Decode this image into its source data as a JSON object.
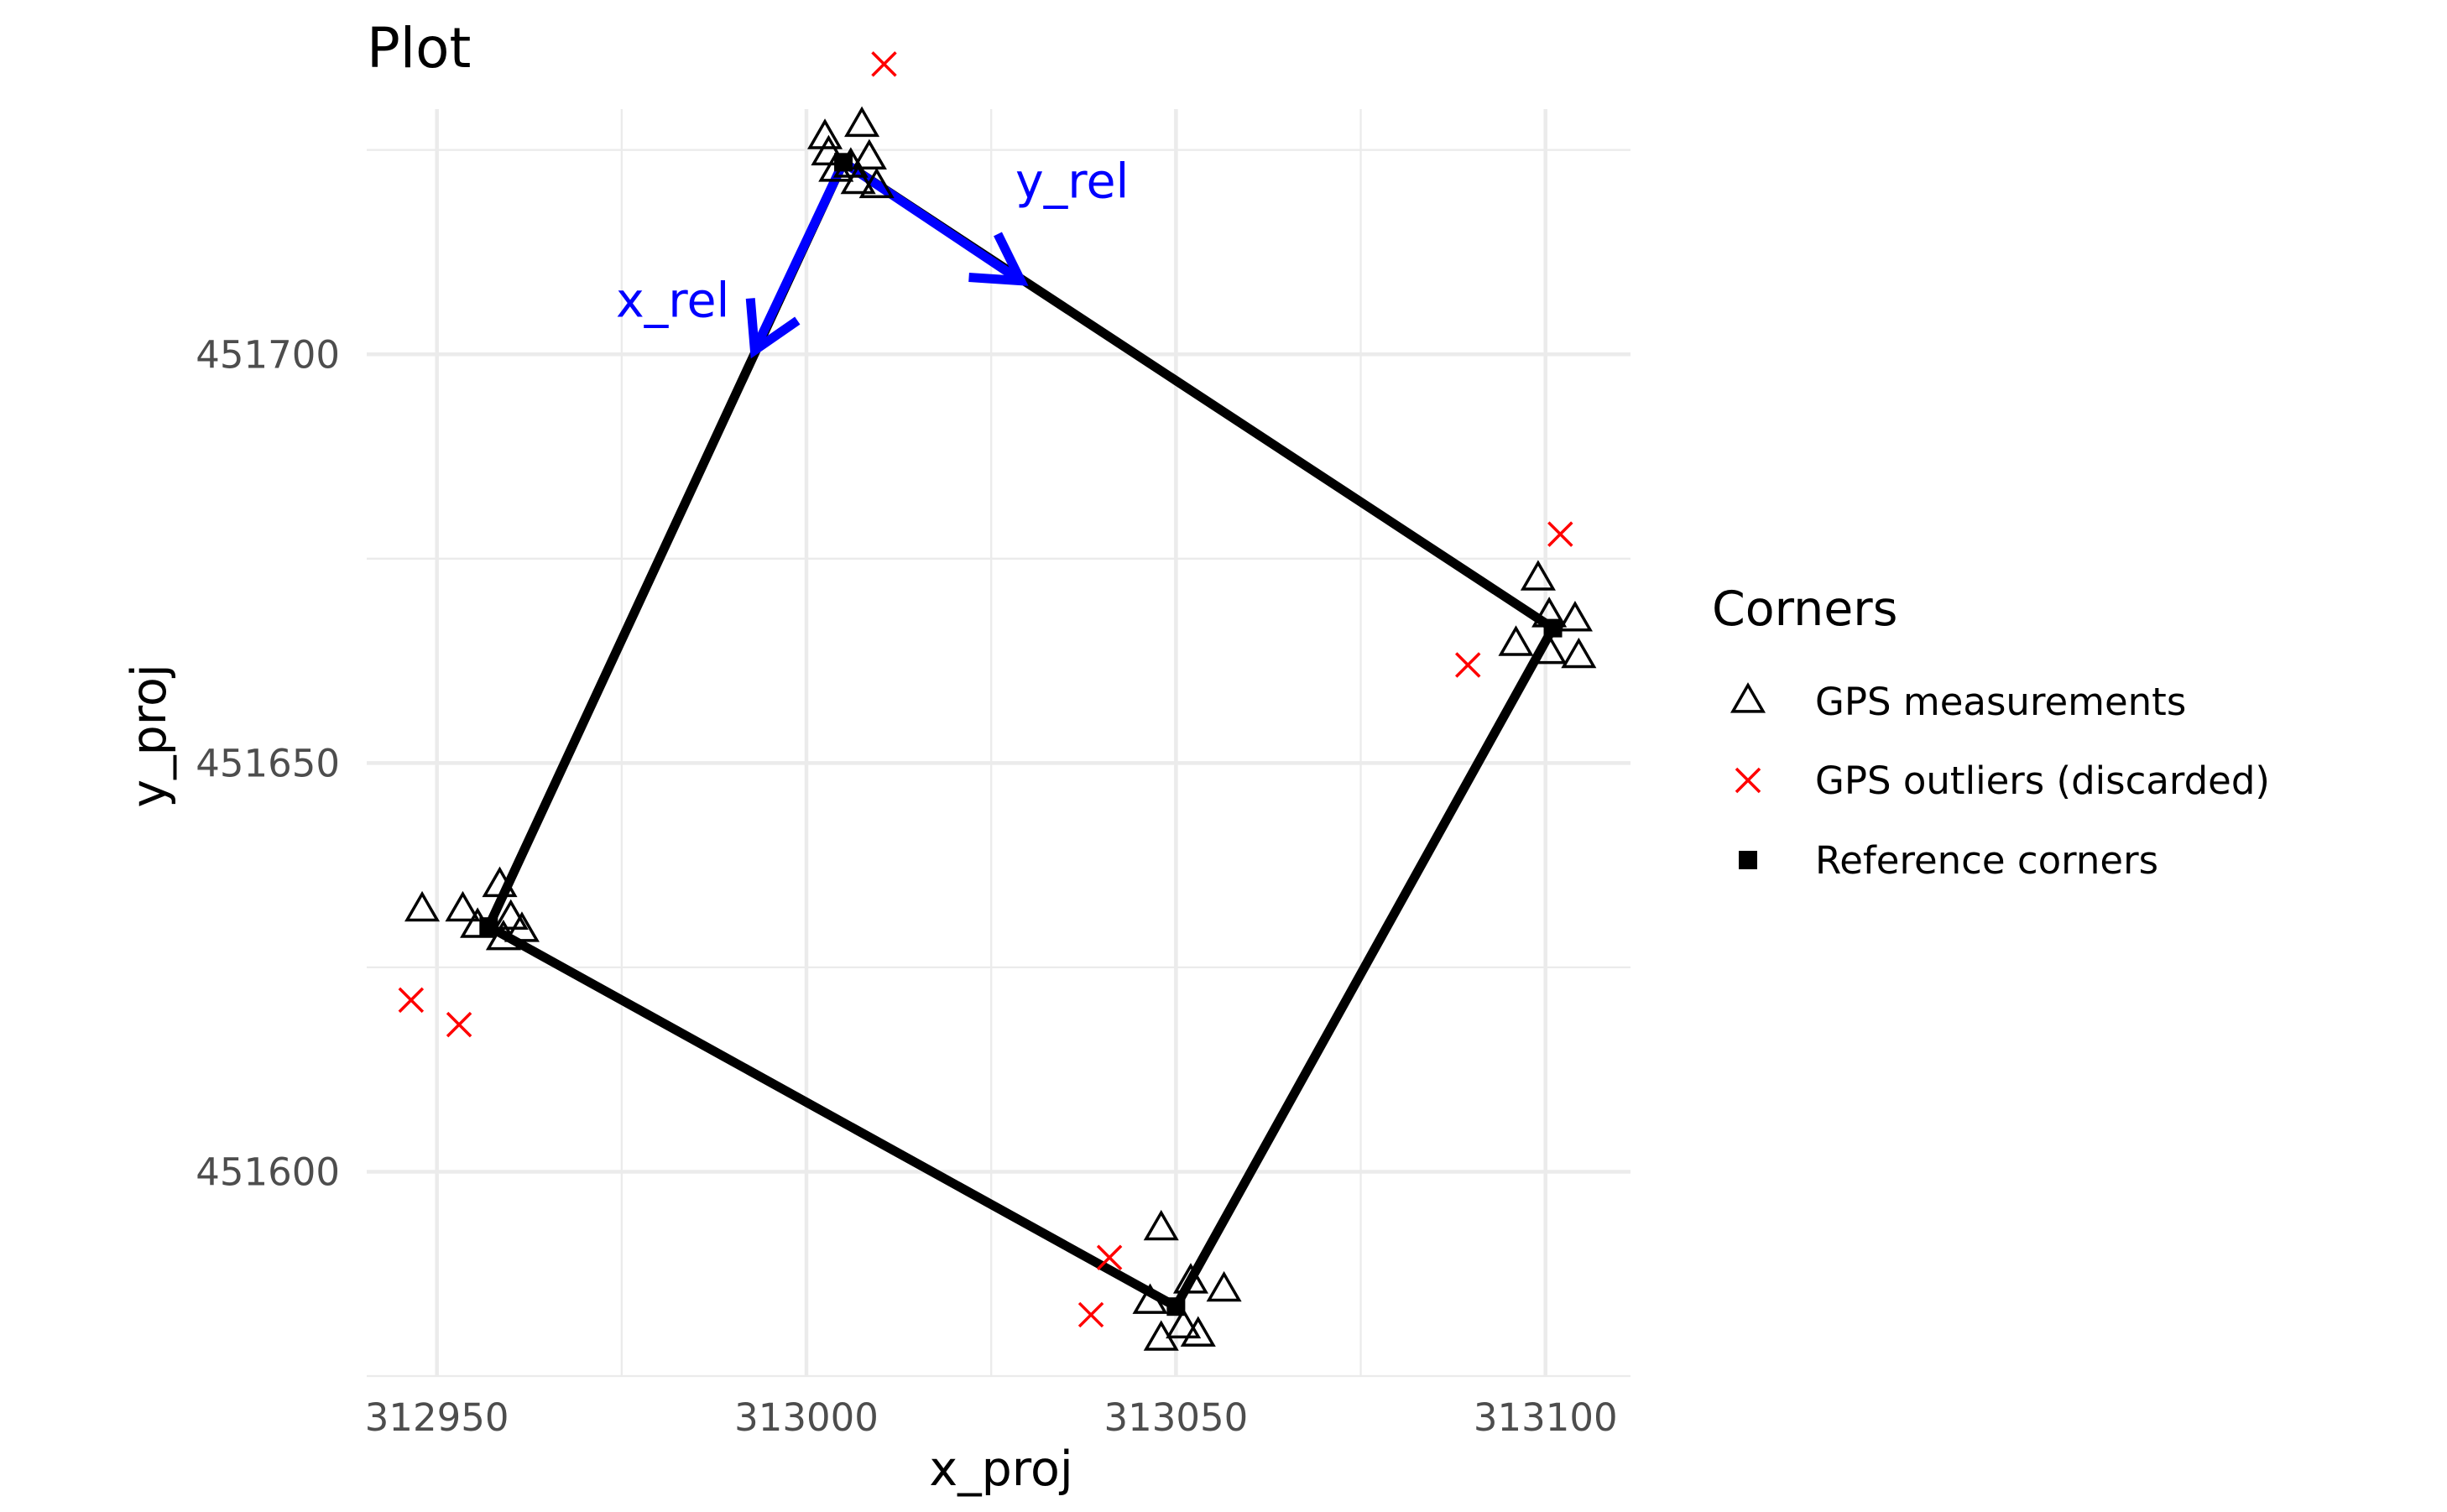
{
  "chart_data": {
    "type": "scatter",
    "title": "Plot",
    "xlabel": "x_proj",
    "ylabel": "y_proj",
    "xlim": [
      312940.5,
      313111.5
    ],
    "ylim": [
      451575,
      451730
    ],
    "x_ticks": [
      312950,
      313000,
      313050,
      313100
    ],
    "y_ticks": [
      451600,
      451650,
      451700
    ],
    "grid": true,
    "legend": {
      "title": "Corners",
      "position": "right",
      "entries": [
        {
          "label": "GPS measurements",
          "shape": "triangle-open",
          "color": "#000000"
        },
        {
          "label": "GPS outliers (discarded)",
          "shape": "cross",
          "color": "#ff0000"
        },
        {
          "label": "Reference corners",
          "shape": "square-filled",
          "color": "#000000"
        }
      ]
    },
    "reference_corners": [
      {
        "x": 313005.0,
        "y": 451723.5
      },
      {
        "x": 313101.0,
        "y": 451666.5
      },
      {
        "x": 313050.0,
        "y": 451583.5
      },
      {
        "x": 312957.0,
        "y": 451630.0
      }
    ],
    "gps_measurements": [
      {
        "x": 313002.5,
        "y": 451726.5
      },
      {
        "x": 313003.0,
        "y": 451724.5
      },
      {
        "x": 313004.0,
        "y": 451722.5
      },
      {
        "x": 313007.5,
        "y": 451728.0
      },
      {
        "x": 313008.5,
        "y": 451724.0
      },
      {
        "x": 313007.0,
        "y": 451721.0
      },
      {
        "x": 313009.5,
        "y": 451720.5
      },
      {
        "x": 313006.0,
        "y": 451723.0
      },
      {
        "x": 313099.0,
        "y": 451672.5
      },
      {
        "x": 313100.5,
        "y": 451668.0
      },
      {
        "x": 313104.0,
        "y": 451667.5
      },
      {
        "x": 313096.0,
        "y": 451664.5
      },
      {
        "x": 313100.5,
        "y": 451663.5
      },
      {
        "x": 313104.5,
        "y": 451663.0
      },
      {
        "x": 313048.0,
        "y": 451593.0
      },
      {
        "x": 313046.5,
        "y": 451584.0
      },
      {
        "x": 313052.0,
        "y": 451586.5
      },
      {
        "x": 313056.5,
        "y": 451585.5
      },
      {
        "x": 313051.0,
        "y": 451581.0
      },
      {
        "x": 313048.0,
        "y": 451579.5
      },
      {
        "x": 313053.0,
        "y": 451580.0
      },
      {
        "x": 312948.0,
        "y": 451632.0
      },
      {
        "x": 312953.5,
        "y": 451632.0
      },
      {
        "x": 312958.5,
        "y": 451635.0
      },
      {
        "x": 312955.5,
        "y": 451630.0
      },
      {
        "x": 312960.0,
        "y": 451631.0
      },
      {
        "x": 312961.5,
        "y": 451629.5
      },
      {
        "x": 312959.0,
        "y": 451628.5
      }
    ],
    "gps_outliers": [
      {
        "x": 313010.5,
        "y": 451735.5
      },
      {
        "x": 313102.0,
        "y": 451678.0
      },
      {
        "x": 313089.5,
        "y": 451662.0
      },
      {
        "x": 313041.0,
        "y": 451589.5
      },
      {
        "x": 313038.5,
        "y": 451582.5
      },
      {
        "x": 312946.5,
        "y": 451621.0
      },
      {
        "x": 312953.0,
        "y": 451618.0
      }
    ],
    "vectors": [
      {
        "label": "x_rel",
        "color": "#0000ff",
        "from": {
          "x": 313005.0,
          "y": 451723.5
        },
        "to": {
          "x": 312993.0,
          "y": 451700.5
        }
      },
      {
        "label": "y_rel",
        "color": "#0000ff",
        "from": {
          "x": 313005.0,
          "y": 451723.5
        },
        "to": {
          "x": 313029.0,
          "y": 451709.0
        }
      }
    ]
  }
}
